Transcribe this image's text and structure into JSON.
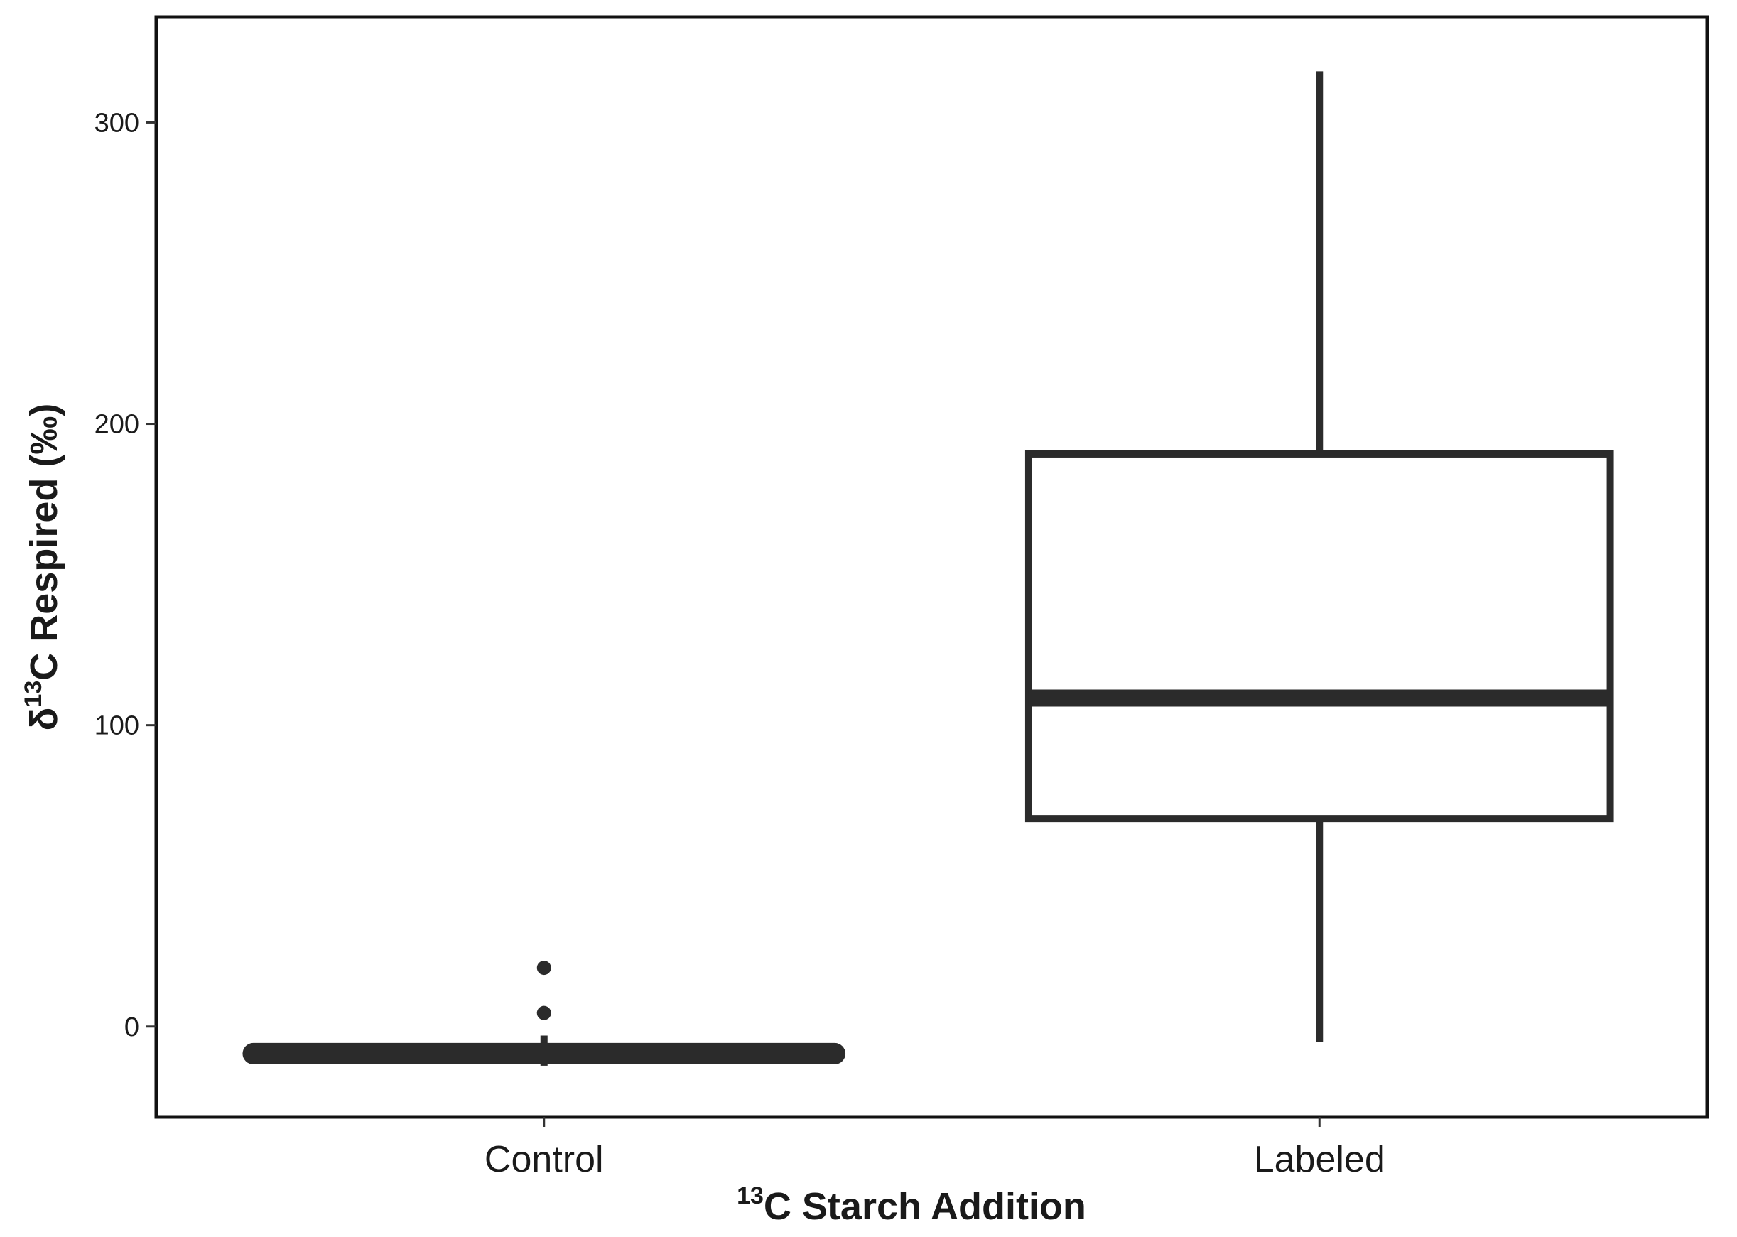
{
  "chart_data": {
    "type": "box",
    "categories": [
      "Control",
      "Labeled"
    ],
    "series": [
      {
        "category": "Control",
        "whisker_low": -13,
        "q1": -10,
        "median": -9,
        "q3": -8,
        "whisker_high": -3,
        "outliers": [
          4.5,
          19.5
        ]
      },
      {
        "category": "Labeled",
        "whisker_low": -5,
        "q1": 69,
        "median": 109,
        "q3": 190,
        "whisker_high": 317,
        "outliers": []
      }
    ],
    "ylim": [
      -30,
      335
    ],
    "yticks": [
      0,
      100,
      200,
      300
    ],
    "ytick_labels": [
      "0",
      "100",
      "200",
      "300"
    ],
    "xlabel": {
      "sup": "13",
      "text": "C Starch Addition"
    },
    "ylabel": {
      "prefix": "δ",
      "sup": "13",
      "text": "C Respired (‰)"
    },
    "grid": false,
    "colors": {
      "stroke": "#2b2b2b",
      "fill": "#ffffff",
      "text": "#1a1a1a"
    }
  }
}
